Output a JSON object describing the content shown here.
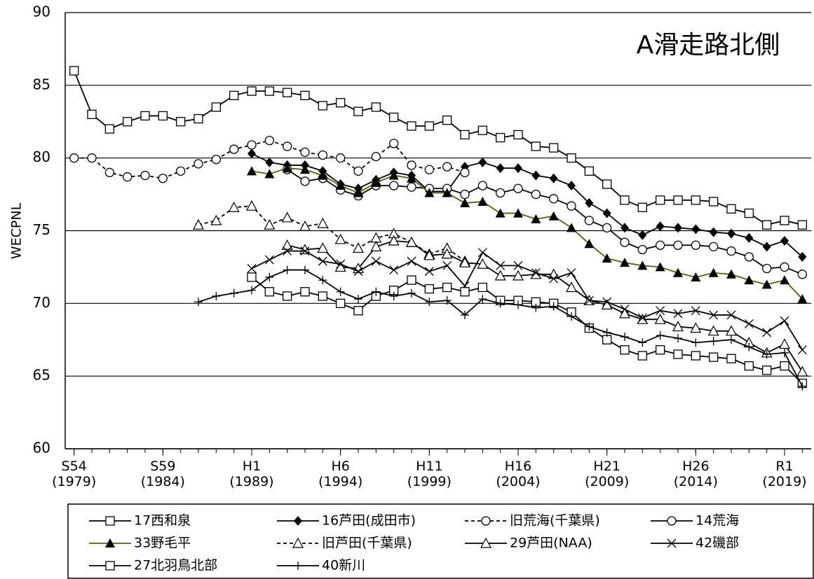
{
  "chart_data": {
    "type": "line",
    "annotation": "A滑走路北側",
    "ylabel": "WECPNL",
    "x": [
      1979,
      1980,
      1981,
      1982,
      1983,
      1984,
      1985,
      1986,
      1987,
      1988,
      1989,
      1990,
      1991,
      1992,
      1993,
      1994,
      1995,
      1996,
      1997,
      1998,
      1999,
      2000,
      2001,
      2002,
      2003,
      2004,
      2005,
      2006,
      2007,
      2008,
      2009,
      2010,
      2011,
      2012,
      2013,
      2014,
      2015,
      2016,
      2017,
      2018,
      2019,
      2020
    ],
    "xlim": [
      1978.5,
      2020.5
    ],
    "xticks": [
      {
        "value": 1979,
        "label": "S54\n(1979)"
      },
      {
        "value": 1984,
        "label": "S59\n(1984)"
      },
      {
        "value": 1989,
        "label": "H1\n(1989)"
      },
      {
        "value": 1994,
        "label": "H6\n(1994)"
      },
      {
        "value": 1999,
        "label": "H11\n(1999)"
      },
      {
        "value": 2004,
        "label": "H16\n(2004)"
      },
      {
        "value": 2009,
        "label": "H21\n(2009)"
      },
      {
        "value": 2014,
        "label": "H26\n(2014)"
      },
      {
        "value": 2019,
        "label": "R1\n(2019)"
      }
    ],
    "ylim": [
      60,
      90
    ],
    "yticks": [
      60,
      65,
      70,
      75,
      80,
      85,
      90
    ],
    "grid": true,
    "series": [
      {
        "name": "17西和泉",
        "color": "#000000",
        "marker": "square",
        "dash": false,
        "values": [
          86.0,
          83.0,
          82.0,
          82.5,
          82.9,
          82.9,
          82.5,
          82.7,
          83.5,
          84.3,
          84.6,
          84.6,
          84.5,
          84.3,
          83.6,
          83.8,
          83.2,
          83.5,
          82.8,
          82.2,
          82.2,
          82.6,
          81.6,
          81.9,
          81.4,
          81.6,
          80.8,
          80.7,
          80.0,
          79.1,
          78.2,
          77.1,
          76.6,
          77.1,
          77.1,
          77.1,
          77.0,
          76.5,
          76.2,
          75.4,
          75.7,
          75.4
        ]
      },
      {
        "name": "16芦田(成田市)",
        "color": "#000000",
        "marker": "diamond",
        "dash": false,
        "values": [
          null,
          null,
          null,
          null,
          null,
          null,
          null,
          null,
          null,
          null,
          80.3,
          79.7,
          79.5,
          79.5,
          79.1,
          78.2,
          77.9,
          78.5,
          79.0,
          78.8,
          77.7,
          77.7,
          79.4,
          79.7,
          79.3,
          79.3,
          78.8,
          78.6,
          78.1,
          76.9,
          76.2,
          75.2,
          74.7,
          75.3,
          75.2,
          75.1,
          74.9,
          74.8,
          74.5,
          73.9,
          74.3,
          73.2
        ]
      },
      {
        "name": "旧荒海(千葉県)",
        "color": "#000000",
        "marker": "circle",
        "dash": true,
        "values": [
          80.0,
          80.0,
          79.0,
          78.7,
          78.8,
          78.6,
          79.1,
          79.6,
          79.9,
          80.6,
          80.9,
          81.2,
          80.8,
          80.4,
          80.2,
          80.0,
          79.1,
          80.1,
          81.0,
          79.5,
          79.2,
          79.4,
          79.0,
          null,
          null,
          null,
          null,
          null,
          null,
          null,
          null,
          null,
          null,
          null,
          null,
          null,
          null,
          null,
          null,
          null,
          null,
          null
        ]
      },
      {
        "name": "14荒海",
        "color": "#000000",
        "marker": "circle",
        "dash": false,
        "values": [
          null,
          null,
          null,
          null,
          null,
          null,
          null,
          null,
          null,
          null,
          null,
          null,
          79.2,
          78.4,
          78.6,
          77.8,
          77.4,
          78.1,
          78.1,
          78.0,
          77.9,
          77.9,
          77.5,
          78.1,
          77.6,
          77.9,
          77.5,
          77.2,
          76.7,
          75.7,
          75.2,
          74.2,
          73.7,
          74.0,
          74.0,
          74.0,
          73.9,
          73.6,
          73.2,
          72.4,
          72.5,
          72.0
        ]
      },
      {
        "name": "33野毛平",
        "color": "#5c5c1a",
        "marker": "triangle-filled",
        "dash": false,
        "values": [
          null,
          null,
          null,
          null,
          null,
          null,
          null,
          null,
          null,
          null,
          79.1,
          78.9,
          79.3,
          79.2,
          78.8,
          78.1,
          77.6,
          78.3,
          78.8,
          78.6,
          77.6,
          77.6,
          76.9,
          77.0,
          76.2,
          76.2,
          75.8,
          76.0,
          75.2,
          74.1,
          73.1,
          72.8,
          72.6,
          72.5,
          72.1,
          71.8,
          72.1,
          72.0,
          71.6,
          71.3,
          71.6,
          70.3
        ]
      },
      {
        "name": "旧芦田(千葉県)",
        "color": "#000000",
        "marker": "triangle",
        "dash": true,
        "values": [
          null,
          null,
          null,
          null,
          null,
          null,
          null,
          75.4,
          75.7,
          76.6,
          76.7,
          75.4,
          75.9,
          75.3,
          75.5,
          74.4,
          73.8,
          74.5,
          74.8,
          74.2,
          73.4,
          73.8,
          72.9,
          null,
          null,
          null,
          null,
          null,
          null,
          null,
          null,
          null,
          null,
          null,
          null,
          null,
          null,
          null,
          null,
          null,
          null,
          null
        ]
      },
      {
        "name": "29芦田(NAA)",
        "color": "#000000",
        "marker": "triangle",
        "dash": false,
        "values": [
          null,
          null,
          null,
          null,
          null,
          null,
          null,
          null,
          null,
          null,
          null,
          null,
          74.0,
          73.7,
          73.8,
          72.5,
          72.4,
          73.9,
          74.3,
          74.2,
          73.3,
          73.4,
          72.8,
          72.7,
          71.9,
          71.9,
          72.0,
          72.0,
          71.1,
          70.2,
          69.9,
          69.3,
          68.9,
          68.9,
          68.4,
          68.3,
          68.1,
          68.1,
          67.3,
          66.6,
          67.2,
          65.3
        ]
      },
      {
        "name": "42磯部",
        "color": "#000000",
        "marker": "x",
        "dash": false,
        "values": [
          null,
          null,
          null,
          null,
          null,
          null,
          null,
          null,
          null,
          null,
          72.4,
          73.0,
          73.6,
          73.6,
          72.9,
          72.7,
          72.2,
          72.9,
          72.3,
          72.9,
          72.2,
          72.6,
          71.2,
          73.5,
          72.6,
          72.6,
          72.1,
          71.7,
          72.1,
          70.2,
          70.1,
          69.6,
          69.0,
          69.5,
          69.3,
          69.5,
          69.2,
          69.2,
          68.6,
          68.0,
          68.8,
          66.8
        ]
      },
      {
        "name": "27北羽鳥北部",
        "color": "#000000",
        "marker": "square",
        "dash": false,
        "values": [
          null,
          null,
          null,
          null,
          null,
          null,
          null,
          null,
          null,
          null,
          71.8,
          70.8,
          70.5,
          70.8,
          70.5,
          70.0,
          69.5,
          70.5,
          70.9,
          71.6,
          71.0,
          71.1,
          70.8,
          71.1,
          70.2,
          70.2,
          70.1,
          70.0,
          69.4,
          68.3,
          67.5,
          66.8,
          66.4,
          66.8,
          66.5,
          66.4,
          66.3,
          66.2,
          65.7,
          65.4,
          65.7,
          64.5
        ]
      },
      {
        "name": "40新川",
        "color": "#000000",
        "marker": "plus",
        "dash": false,
        "values": [
          null,
          null,
          null,
          null,
          null,
          null,
          null,
          70.1,
          70.5,
          70.7,
          70.9,
          71.8,
          72.3,
          72.3,
          71.6,
          70.8,
          70.3,
          70.8,
          70.5,
          70.7,
          70.1,
          70.2,
          69.2,
          70.3,
          70.0,
          69.9,
          69.7,
          69.8,
          69.1,
          68.4,
          68.0,
          67.7,
          67.3,
          67.8,
          67.6,
          67.3,
          67.4,
          67.5,
          67.0,
          66.5,
          66.6,
          64.3
        ]
      }
    ]
  }
}
